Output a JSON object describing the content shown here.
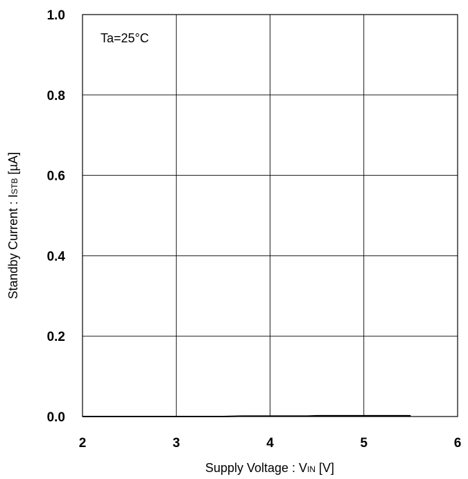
{
  "chart_data": {
    "type": "line",
    "title": "",
    "xlabel": {
      "main": "Supply Voltage : V",
      "sub": "IN",
      "unit": " [V]"
    },
    "ylabel": {
      "main": "Standby Current : I",
      "sub": "STB",
      "unit": " [µA]"
    },
    "xlim": [
      2,
      6
    ],
    "ylim": [
      0.0,
      1.0
    ],
    "x_ticks": [
      2,
      3,
      4,
      5,
      6
    ],
    "y_ticks": [
      0.0,
      0.2,
      0.4,
      0.6,
      0.8,
      1.0
    ],
    "x_tick_labels": [
      "2",
      "3",
      "4",
      "5",
      "6"
    ],
    "y_tick_labels": [
      "0.0",
      "0.2",
      "0.4",
      "0.6",
      "0.8",
      "1.0"
    ],
    "grid": true,
    "annotations": [
      {
        "text": "Ta=25°C"
      }
    ],
    "series": [
      {
        "color": "#000000",
        "x": [
          2.0,
          2.5,
          3.0,
          3.5,
          3.7,
          4.0,
          4.4,
          4.5,
          5.0,
          5.5
        ],
        "y": [
          0.0,
          0.0,
          0.0,
          0.0,
          0.001,
          0.001,
          0.001,
          0.002,
          0.002,
          0.002
        ]
      }
    ]
  }
}
